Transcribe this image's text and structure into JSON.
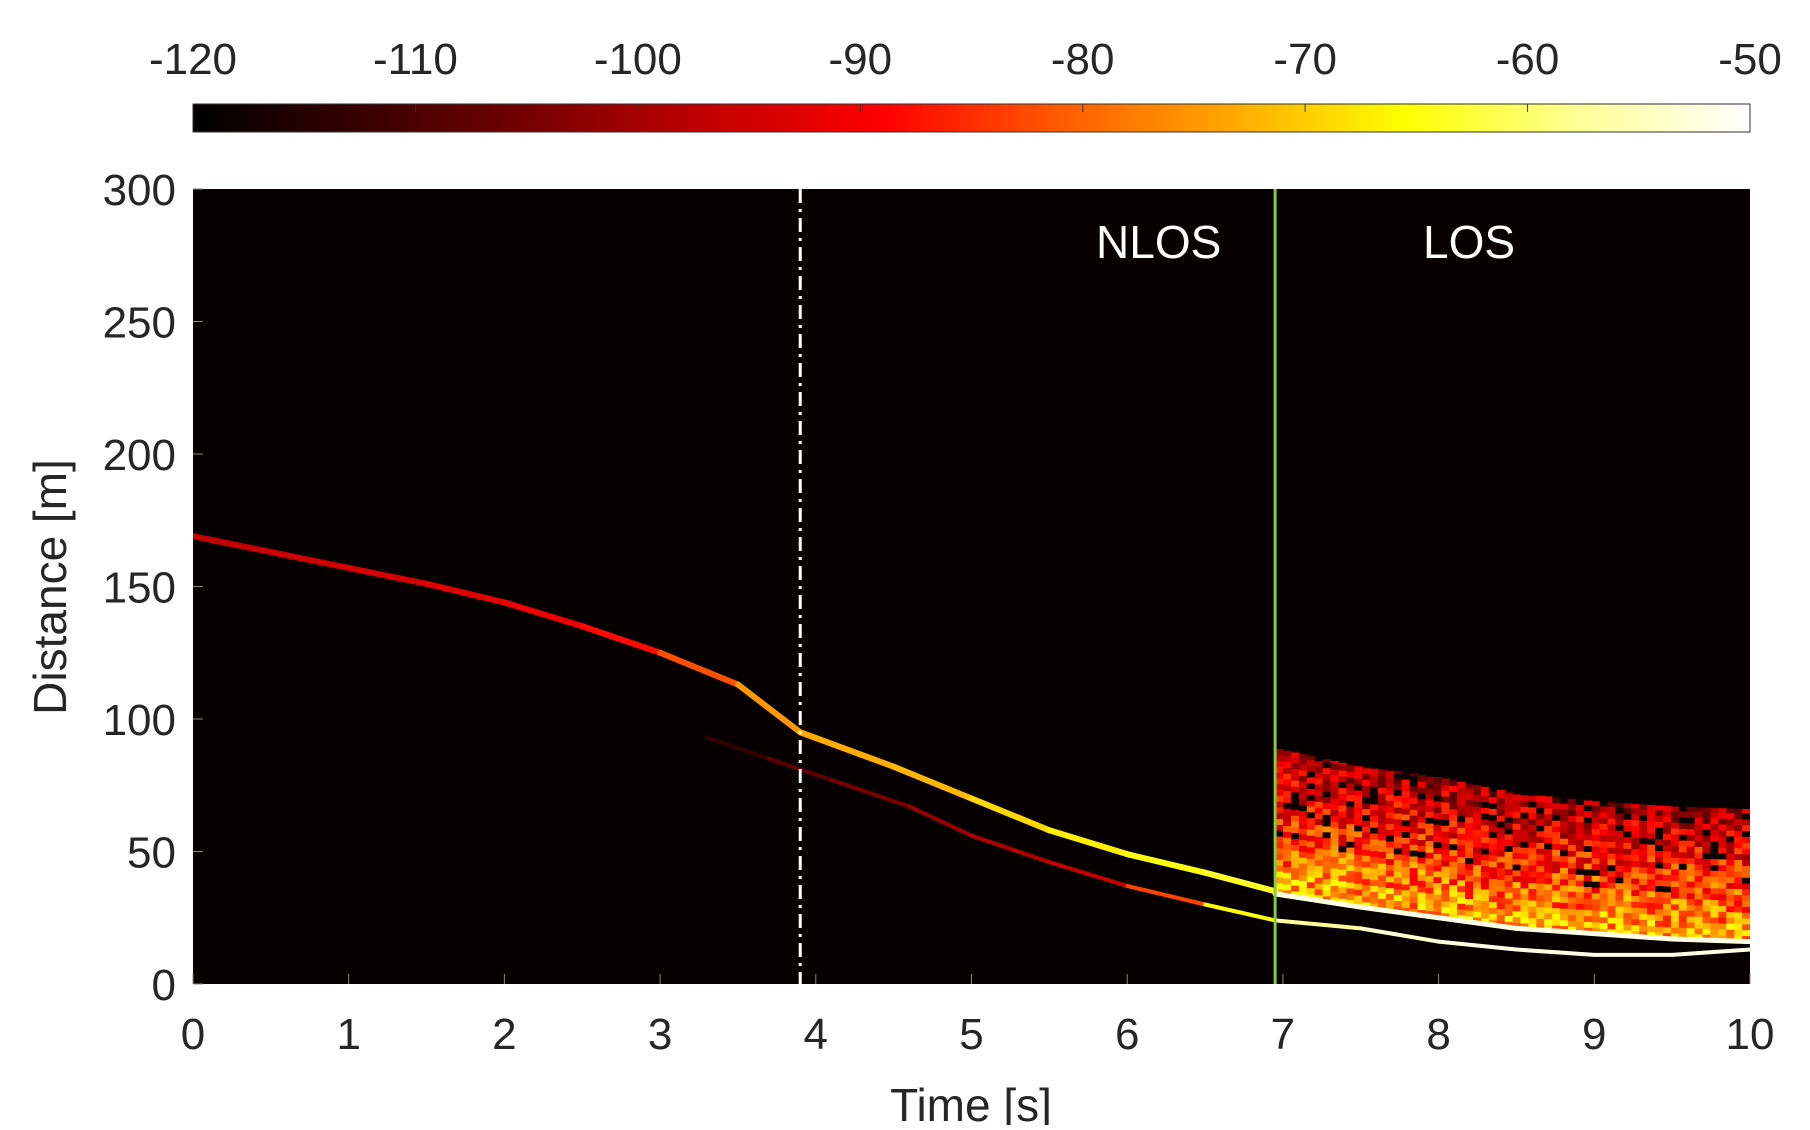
{
  "chart_data": {
    "type": "heatmap",
    "title": "",
    "xlabel": "Time [s]",
    "ylabel": "Distance [m]",
    "xlim": [
      0,
      10
    ],
    "ylim": [
      0,
      300
    ],
    "x_ticks": [
      0,
      1,
      2,
      3,
      4,
      5,
      6,
      7,
      8,
      9,
      10
    ],
    "y_ticks": [
      0,
      50,
      100,
      150,
      200,
      250,
      300
    ],
    "colorbar": {
      "min": -120,
      "max": -50,
      "ticks": [
        -120,
        -110,
        -100,
        -90,
        -80,
        -70,
        -60,
        -50
      ],
      "colormap": [
        "#000000",
        "#3a0000",
        "#7a0000",
        "#c40000",
        "#ff0000",
        "#ff5a00",
        "#ffa800",
        "#ffff00",
        "#ffff96",
        "#ffffff"
      ],
      "location": "top"
    },
    "background_value": -119,
    "annotations": [
      {
        "text": "NLOS",
        "x": 5.8,
        "y": 280
      },
      {
        "text": "LOS",
        "x": 7.9,
        "y": 280
      }
    ],
    "reference_lines": [
      {
        "name": "transition-marker",
        "x": 3.9,
        "style": "dash-dot",
        "color": "#ffffff"
      },
      {
        "name": "los-boundary",
        "x": 6.95,
        "style": "solid",
        "color": "#8dc63f"
      }
    ],
    "traces": [
      {
        "name": "main-path",
        "points": [
          [
            0,
            169
          ],
          [
            0.5,
            163
          ],
          [
            1,
            157
          ],
          [
            1.5,
            151
          ],
          [
            2,
            144
          ],
          [
            2.5,
            135
          ],
          [
            3,
            125
          ],
          [
            3.5,
            113
          ],
          [
            3.9,
            95
          ],
          [
            4.5,
            82
          ],
          [
            5,
            70
          ],
          [
            5.5,
            58
          ],
          [
            6,
            49
          ],
          [
            6.5,
            42
          ],
          [
            6.95,
            35
          ]
        ],
        "values": [
          -97,
          -96,
          -95,
          -94,
          -92,
          -90,
          -86,
          -78,
          -72,
          -74,
          -70,
          -68,
          -66,
          -64,
          -63
        ]
      },
      {
        "name": "reflected-path",
        "points": [
          [
            3.3,
            93
          ],
          [
            3.7,
            85
          ],
          [
            4.1,
            77
          ],
          [
            4.6,
            67
          ],
          [
            5,
            56
          ],
          [
            5.5,
            46
          ],
          [
            6,
            37
          ],
          [
            6.5,
            30
          ],
          [
            6.95,
            24
          ],
          [
            7.5,
            21
          ],
          [
            8,
            16
          ],
          [
            8.5,
            13
          ],
          [
            9,
            11
          ],
          [
            9.5,
            11
          ],
          [
            10,
            13
          ]
        ],
        "values": [
          -116,
          -110,
          -106,
          -103,
          -100,
          -98,
          -96,
          -70,
          -60,
          -55,
          -52,
          -52,
          -52,
          -52,
          -52
        ]
      },
      {
        "name": "outer-edge",
        "points": [
          [
            6.95,
            34
          ],
          [
            7.5,
            29
          ],
          [
            8,
            25
          ],
          [
            8.5,
            21
          ],
          [
            9,
            19
          ],
          [
            9.5,
            17
          ],
          [
            10,
            16
          ]
        ],
        "values": [
          -52,
          -52,
          -52,
          -52,
          -52,
          -52,
          -52
        ]
      }
    ],
    "los_region": {
      "x_range": [
        6.95,
        10
      ],
      "upper_boundary": [
        [
          6.95,
          89
        ],
        [
          7.5,
          82
        ],
        [
          8,
          78
        ],
        [
          8.5,
          72
        ],
        [
          9,
          69
        ],
        [
          9.5,
          67
        ],
        [
          10,
          66
        ]
      ],
      "value_range": [
        -110,
        -62
      ]
    }
  }
}
